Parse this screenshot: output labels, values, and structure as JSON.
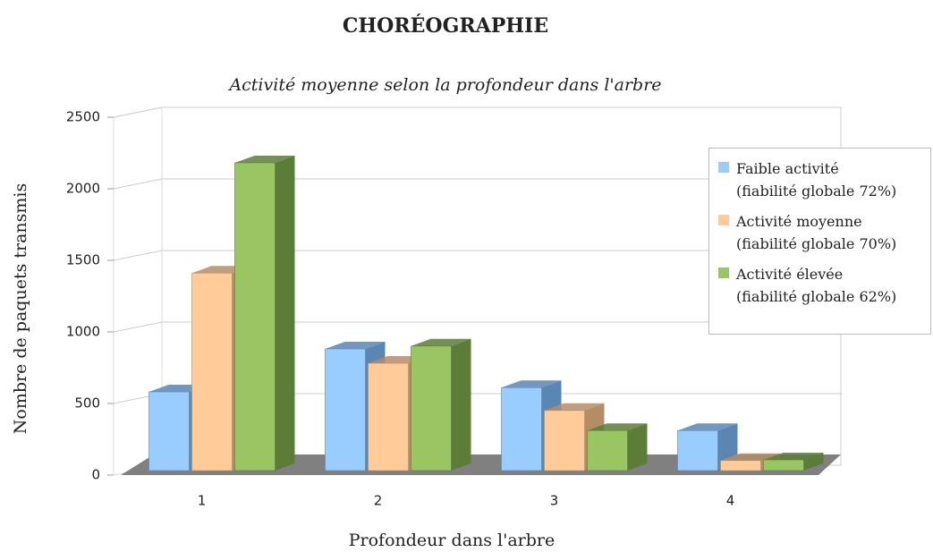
{
  "chart_data": {
    "type": "bar3d",
    "title": "CHORÉOGRAPHIE",
    "subtitle": "Activité moyenne selon la profondeur dans l'arbre",
    "x_label": "Profondeur dans l'arbre",
    "y_label": "Nombre de paquets transmis",
    "categories": [
      "1",
      "2",
      "3",
      "4"
    ],
    "series": [
      {
        "name": "Faible activité\n(fiabilité globale 72%)",
        "color": "#99ccff",
        "side_color": "#5a86b3",
        "values": [
          550,
          850,
          580,
          280
        ]
      },
      {
        "name": "Activité moyenne\n(fiabilité globale 70%)",
        "color": "#ffcc99",
        "side_color": "#b38d66",
        "values": [
          1380,
          750,
          420,
          70
        ]
      },
      {
        "name": "Activité élevée\n(fiabilité globale 62%)",
        "color": "#99c663",
        "side_color": "#5c7d38",
        "values": [
          2150,
          870,
          280,
          75
        ]
      }
    ],
    "ylim": [
      0,
      2500
    ],
    "yticks": [
      0,
      500,
      1000,
      1500,
      2000,
      2500
    ],
    "grid": true,
    "legend": "right"
  }
}
